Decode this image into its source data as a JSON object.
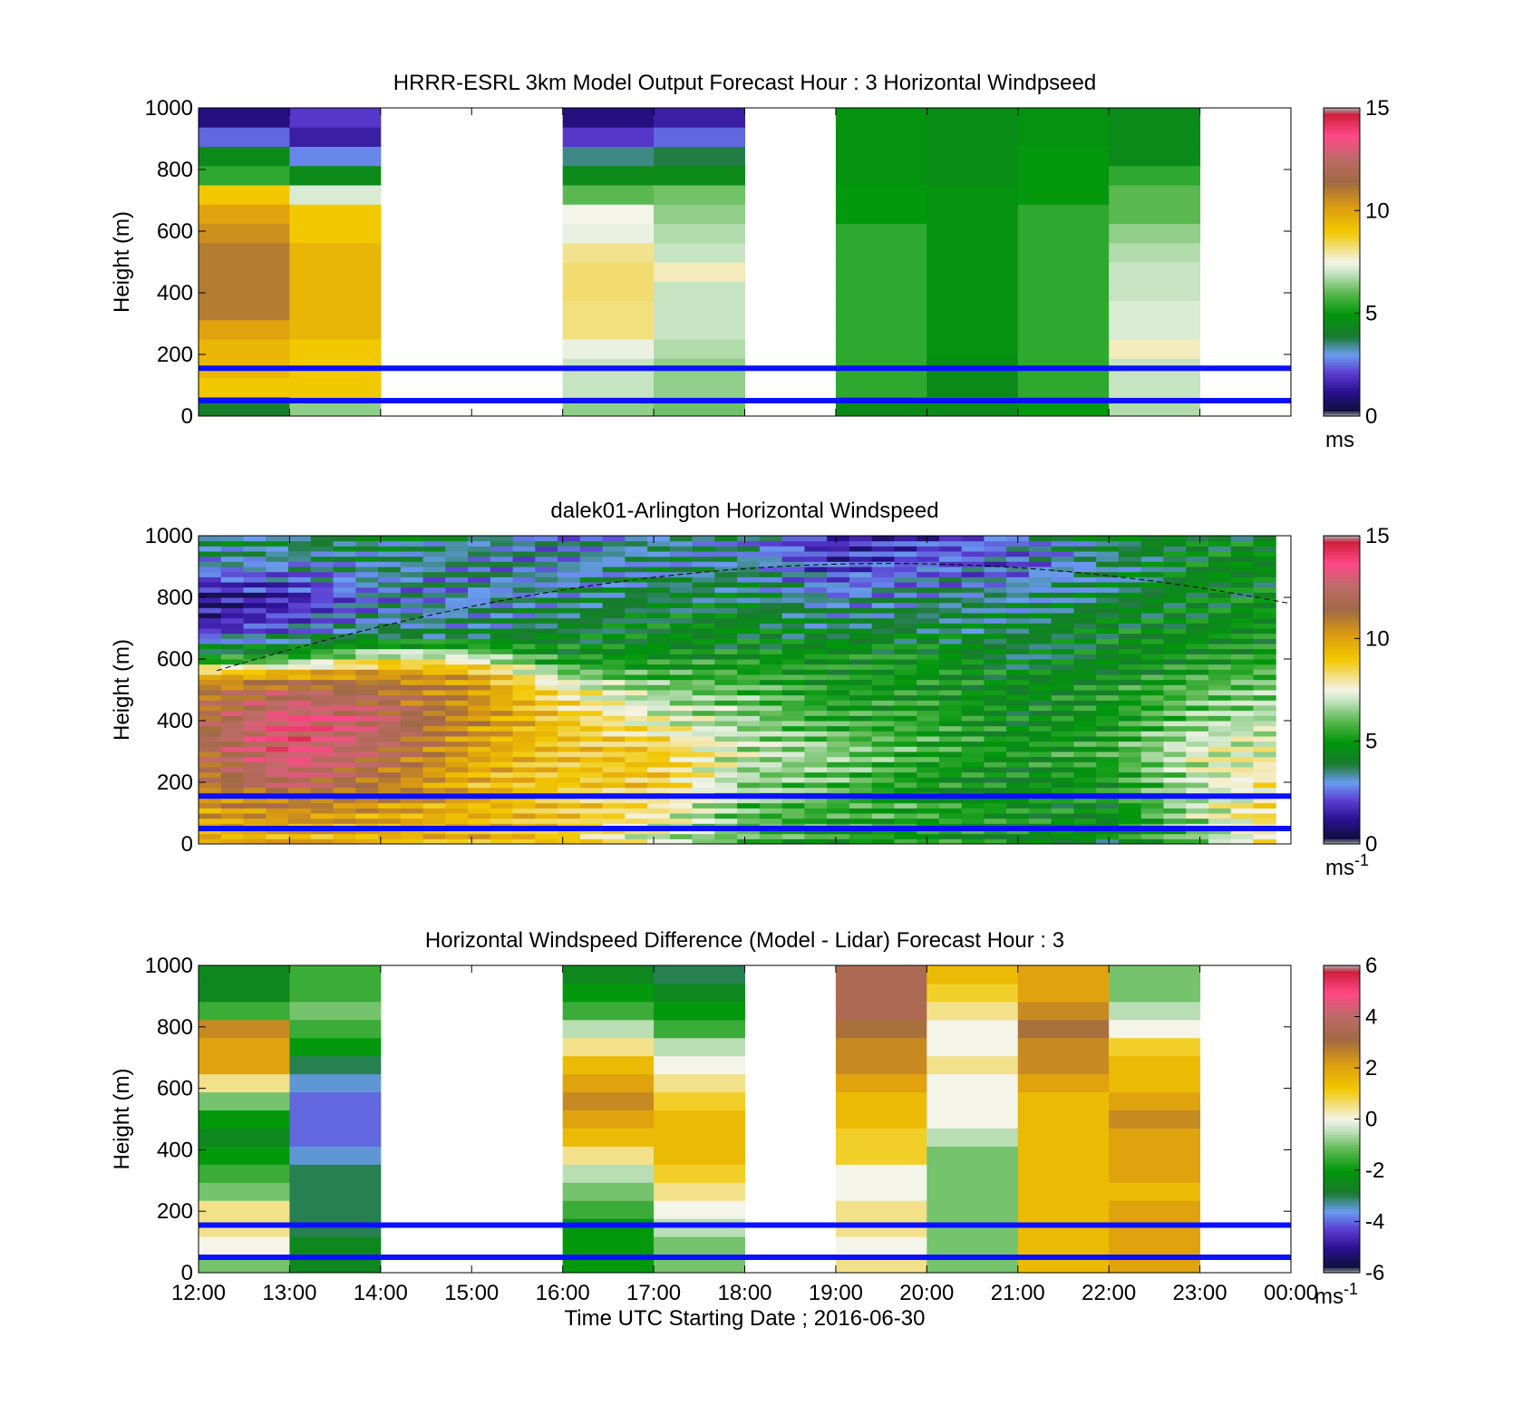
{
  "figure": {
    "xlabel": "Time UTC  Starting Date ; 2016-06-30",
    "x_ticks": [
      "12:00",
      "13:00",
      "14:00",
      "15:00",
      "16:00",
      "17:00",
      "18:00",
      "19:00",
      "20:00",
      "21:00",
      "22:00",
      "23:00",
      "00:00"
    ]
  },
  "chart_data": [
    {
      "type": "heatmap",
      "title": "HRRR-ESRL 3km Model Output   Forecast Hour : 3 Horizontal Windpseed",
      "ylabel": "Height (m)",
      "ylim": [
        0,
        1000
      ],
      "xlim": [
        "12:00",
        "00:00"
      ],
      "y_ticks": [
        "0",
        "200",
        "400",
        "600",
        "800",
        "1000"
      ],
      "colorbar": {
        "min": 0,
        "max": 15,
        "ticks": [
          "0",
          "5",
          "10",
          "15"
        ],
        "unit": "ms",
        "unit_sup": ""
      },
      "reference_lines_m": [
        50,
        155
      ],
      "columns": [
        {
          "start": "12:00",
          "end": "13:00",
          "values": [
            4,
            9,
            9.5,
            9.5,
            10,
            11,
            11,
            11,
            11,
            10.5,
            10,
            9,
            5.5,
            4.5,
            2.5,
            1
          ]
        },
        {
          "start": "13:00",
          "end": "14:00",
          "values": [
            6.5,
            9,
            9,
            9,
            9.5,
            9.5,
            9.5,
            9.5,
            9.5,
            9,
            9,
            7.2,
            4.5,
            2.8,
            1.5,
            2
          ]
        },
        {
          "start": "16:00",
          "end": "17:00",
          "values": [
            6.5,
            7,
            7,
            7.4,
            8.2,
            8.2,
            8.3,
            8.3,
            8.1,
            7.4,
            7.5,
            6,
            4.5,
            3.5,
            2,
            1
          ]
        },
        {
          "start": "17:00",
          "end": "18:00",
          "values": [
            6.2,
            6.5,
            6.5,
            6.8,
            7,
            7,
            7,
            7.8,
            7,
            6.8,
            6.5,
            6.2,
            4.5,
            3.8,
            2.5,
            1.5
          ]
        },
        {
          "start": "19:00",
          "end": "20:00",
          "values": [
            4.5,
            5.5,
            5.5,
            5.5,
            5.5,
            5.5,
            5.5,
            5.5,
            5.5,
            5.5,
            5,
            5,
            4.8,
            4.8,
            4.8,
            4.8
          ]
        },
        {
          "start": "20:00",
          "end": "21:00",
          "values": [
            4.5,
            4.5,
            4.5,
            4.8,
            4.8,
            4.8,
            4.8,
            4.8,
            4.8,
            4.8,
            4.8,
            4.8,
            4.6,
            4.6,
            4.6,
            4.6
          ]
        },
        {
          "start": "21:00",
          "end": "22:00",
          "values": [
            5,
            5.5,
            5.5,
            5.5,
            5.5,
            5.5,
            5.5,
            5.5,
            5.5,
            5.5,
            5.5,
            5,
            5,
            5,
            4.8,
            4.8
          ]
        },
        {
          "start": "22:00",
          "end": "23:00",
          "values": [
            6.8,
            7,
            7,
            7.8,
            7.2,
            7.2,
            7,
            7,
            6.8,
            6.5,
            6,
            6,
            5.5,
            4.5,
            4.5,
            4.5
          ]
        }
      ]
    },
    {
      "type": "heatmap",
      "title": "dalek01-Arlington  Horizontal Windspeed",
      "ylabel": "Height (m)",
      "ylim": [
        0,
        1000
      ],
      "xlim": [
        "12:00",
        "00:00"
      ],
      "y_ticks": [
        "0",
        "200",
        "400",
        "600",
        "800",
        "1000"
      ],
      "colorbar": {
        "min": 0,
        "max": 15,
        "ticks": [
          "0",
          "5",
          "10",
          "15"
        ],
        "unit": "ms",
        "unit_sup": "-1"
      },
      "reference_lines_m": [
        50,
        155
      ],
      "boundary_curve": "dashed",
      "time_anchors": [
        "12:00",
        "13:00",
        "14:00",
        "15:00",
        "16:00",
        "17:00",
        "18:00",
        "19:00",
        "20:00",
        "21:00",
        "22:00",
        "23:00",
        "00:00"
      ],
      "profile_heights_m": [
        0,
        100,
        200,
        300,
        400,
        500,
        550,
        600,
        650,
        700,
        800,
        900,
        1000
      ],
      "profiles": [
        [
          9.5,
          10,
          11,
          11.5,
          11.5,
          11,
          9.5,
          5,
          3.5,
          1.5,
          1,
          3,
          4
        ],
        [
          9.5,
          10.5,
          12.5,
          13.5,
          13.5,
          12,
          10,
          5.5,
          4,
          2.5,
          1.5,
          3,
          4
        ],
        [
          9.5,
          10,
          11,
          12,
          12.5,
          11.5,
          10.5,
          8,
          5,
          3.5,
          3,
          3.5,
          4
        ],
        [
          9.5,
          9.5,
          9.5,
          10,
          10.5,
          10.5,
          10,
          7.5,
          5,
          3.5,
          3,
          3.2,
          3.5
        ],
        [
          9,
          9,
          9,
          9,
          9,
          8,
          6.5,
          5,
          4.5,
          4,
          3.5,
          3,
          3
        ],
        [
          7,
          8,
          9,
          9,
          7.5,
          6.5,
          5.5,
          5,
          4.5,
          4.5,
          4,
          3.5,
          3.5
        ],
        [
          6,
          6,
          6.5,
          7,
          6.5,
          6,
          5.5,
          5,
          4.5,
          4.5,
          4,
          3.5,
          3
        ],
        [
          5,
          5.5,
          6,
          6.5,
          5.5,
          5,
          5,
          5,
          4.5,
          4,
          3,
          2,
          1.5
        ],
        [
          5,
          5.5,
          5,
          5.5,
          5.5,
          5,
          5,
          5,
          4.5,
          4,
          3.5,
          2.5,
          2
        ],
        [
          4.5,
          5,
          4.5,
          5,
          4.5,
          4.5,
          4.5,
          4,
          4,
          4,
          3.5,
          2.5,
          3
        ],
        [
          4.5,
          4.5,
          5,
          5.5,
          5,
          5,
          4.5,
          4.5,
          4.5,
          4.5,
          4,
          3.5,
          4
        ],
        [
          6,
          7,
          7,
          7.5,
          6.5,
          6,
          5.5,
          5,
          4.8,
          4.5,
          4.5,
          4.5,
          4.5
        ],
        [
          8.5,
          9,
          8.5,
          7.5,
          7,
          6.5,
          6,
          5.5,
          5,
          5,
          4.8,
          4.5,
          4.5
        ]
      ]
    },
    {
      "type": "heatmap",
      "title": "Horizontal Windspeed Difference (Model - Lidar) Forecast Hour : 3",
      "ylabel": "Height (m)",
      "ylim": [
        0,
        1000
      ],
      "xlim": [
        "12:00",
        "00:00"
      ],
      "y_ticks": [
        "0",
        "200",
        "400",
        "600",
        "800",
        "1000"
      ],
      "colorbar": {
        "min": -6,
        "max": 6,
        "ticks": [
          "-6",
          "-4",
          "-2",
          "0",
          "2",
          "4",
          "6"
        ],
        "unit": "ms",
        "unit_sup": "-1"
      },
      "reference_lines_m": [
        50,
        155
      ],
      "columns": [
        {
          "start": "12:00",
          "end": "13:00",
          "values": [
            -1,
            0,
            0.5,
            0.5,
            -1,
            -1.5,
            -2,
            -2.5,
            -2,
            -1,
            0.5,
            2,
            2,
            2.5,
            -1.5,
            -2.5,
            -2.5
          ]
        },
        {
          "start": "13:00",
          "end": "14:00",
          "values": [
            -2.5,
            -2.5,
            -3,
            -3,
            -3,
            -3,
            -3.5,
            -4,
            -4,
            -4,
            -3.5,
            -3,
            -2,
            -1.5,
            -1,
            -1.5,
            -1.5
          ]
        },
        {
          "start": "16:00",
          "end": "17:00",
          "values": [
            -2,
            -2,
            -2,
            -1.5,
            -1,
            -0.5,
            0.5,
            1.5,
            2,
            2.5,
            2,
            1.5,
            0.5,
            -0.5,
            -1.5,
            -2,
            -2.5
          ]
        },
        {
          "start": "17:00",
          "end": "18:00",
          "values": [
            -1,
            -1,
            -0.5,
            0,
            0.5,
            1,
            1.5,
            1.5,
            1.5,
            1,
            0.5,
            0,
            -0.5,
            -1.5,
            -2,
            -2.5,
            -3
          ]
        },
        {
          "start": "19:00",
          "end": "20:00",
          "values": [
            0.5,
            0,
            0.5,
            0.5,
            0,
            0,
            1,
            1,
            1.5,
            1.5,
            2,
            2.5,
            2.5,
            3,
            3.5,
            3.5,
            3.5
          ]
        },
        {
          "start": "20:00",
          "end": "21:00",
          "values": [
            -1,
            -1,
            -1,
            -1,
            -1,
            -1,
            -1,
            -0.5,
            0,
            0,
            0,
            0.5,
            0,
            0,
            0.5,
            1,
            1.5
          ]
        },
        {
          "start": "21:00",
          "end": "22:00",
          "values": [
            1.5,
            1.5,
            1.5,
            1.5,
            1.5,
            1.5,
            1.5,
            1.5,
            1.5,
            1.5,
            2,
            2.5,
            2.5,
            3,
            2.5,
            2,
            2
          ]
        },
        {
          "start": "22:00",
          "end": "23:00",
          "values": [
            2,
            2,
            2,
            2,
            1.5,
            2,
            2,
            2,
            2.5,
            2,
            1.5,
            1.5,
            1,
            0,
            -0.5,
            -1,
            -1
          ]
        }
      ]
    }
  ]
}
